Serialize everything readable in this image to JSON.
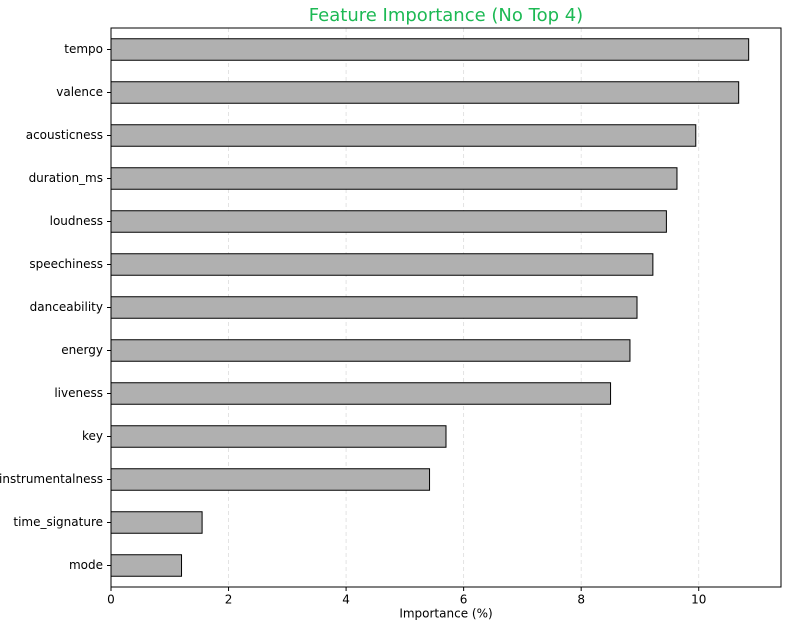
{
  "chart_data": {
    "type": "barh",
    "title": "Feature Importance (No Top 4)",
    "x_label": "Importance (%)",
    "categories": [
      "tempo",
      "valence",
      "acousticness",
      "duration_ms",
      "loudness",
      "speechiness",
      "danceability",
      "energy",
      "liveness",
      "key",
      "instrumentalness",
      "time_signature",
      "mode"
    ],
    "values": [
      10.85,
      10.68,
      9.95,
      9.63,
      9.45,
      9.22,
      8.95,
      8.83,
      8.5,
      5.7,
      5.42,
      1.55,
      1.2
    ],
    "color": "#b0b0b0",
    "xlim": [
      0,
      11.4
    ],
    "xticks": [
      0,
      2,
      4,
      6,
      8,
      10
    ],
    "grid": true
  }
}
